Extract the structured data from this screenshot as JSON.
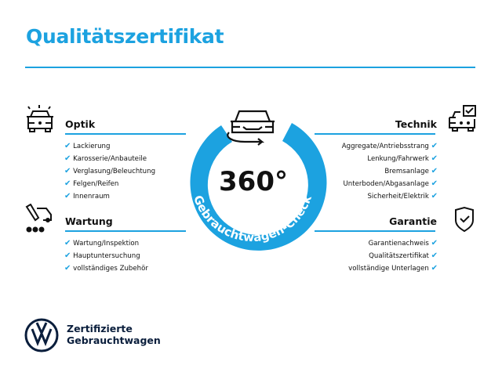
{
  "title": "Qualitätszertifikat",
  "badge": {
    "number": "360°",
    "ring_text": "Gebrauchtwagen-Check",
    "color": "#1ca2e0"
  },
  "sections": {
    "optik": {
      "title": "Optik",
      "icon": "car-lights-icon",
      "items": [
        "Lackierung",
        "Karosserie/Anbauteile",
        "Verglasung/Beleuchtung",
        "Felgen/Reifen",
        "Innenraum"
      ]
    },
    "wartung": {
      "title": "Wartung",
      "icon": "wrench-car-icon",
      "items": [
        "Wartung/Inspektion",
        "Hauptuntersuchung",
        "vollständiges Zubehör"
      ]
    },
    "technik": {
      "title": "Technik",
      "icon": "car-checkbox-icon",
      "items": [
        "Aggregate/Antriebsstrang",
        "Lenkung/Fahrwerk",
        "Bremsanlage",
        "Unterboden/Abgasanlage",
        "Sicherheit/Elektrik"
      ]
    },
    "garantie": {
      "title": "Garantie",
      "icon": "shield-check-icon",
      "items": [
        "Garantienachweis",
        "Qualitätszertifikat",
        "vollständige Unterlagen"
      ]
    }
  },
  "check_mark": "✔",
  "footer": {
    "line1": "Zertifizierte",
    "line2": "Gebrauchtwagen",
    "logo": "VW"
  }
}
